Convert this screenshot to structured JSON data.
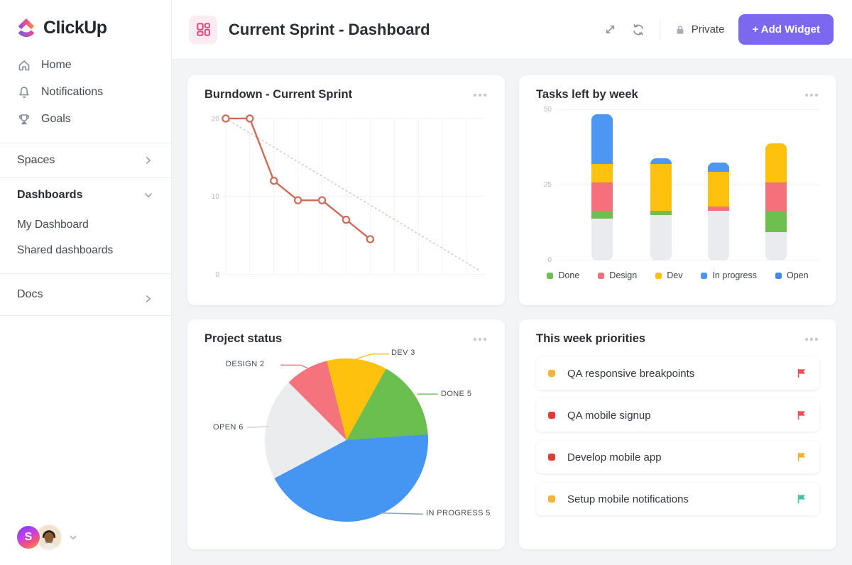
{
  "colors": {
    "accent_purple": "#7b68ee",
    "header_icon_pink": "#e9447e",
    "line_red": "#cf6a58",
    "flag_red": "#ee4b52",
    "flag_yellow": "#f2b02c",
    "flag_teal": "#3cc8a2"
  },
  "sidebar": {
    "logo_text": "ClickUp",
    "nav": [
      {
        "icon": "home-icon",
        "label": "Home"
      },
      {
        "icon": "bell-icon",
        "label": "Notifications"
      },
      {
        "icon": "trophy-icon",
        "label": "Goals"
      }
    ],
    "spaces_label": "Spaces",
    "dashboards_label": "Dashboards",
    "dashboards_children": [
      {
        "label": "My Dashboard"
      },
      {
        "label": "Shared dashboards"
      }
    ],
    "docs_label": "Docs",
    "avatar_initial": "S"
  },
  "header": {
    "title": "Current Sprint - Dashboard",
    "private_label": "Private",
    "add_widget_label": "+ Add Widget"
  },
  "widgets": {
    "burndown": {
      "title": "Burndown - Current Sprint"
    },
    "tasks_left": {
      "title": "Tasks left by week"
    },
    "project_status": {
      "title": "Project status"
    },
    "priorities": {
      "title": "This week priorities",
      "items": [
        {
          "title": "QA responsive breakpoints",
          "status_color": "#f7b436",
          "flag_color": "#ee4b52"
        },
        {
          "title": "QA mobile signup",
          "status_color": "#e23b35",
          "flag_color": "#ee4b52"
        },
        {
          "title": "Develop mobile app",
          "status_color": "#e23b35",
          "flag_color": "#f2b02c"
        },
        {
          "title": "Setup mobile notifications",
          "status_color": "#f7b436",
          "flag_color": "#3cc8a2"
        }
      ]
    }
  },
  "chart_data": [
    {
      "id": "burndown",
      "type": "line",
      "title": "Burndown - Current Sprint",
      "ylim": [
        0,
        20
      ],
      "yticks": [
        0,
        10,
        20
      ],
      "x_gridline_count": 11,
      "grid": true,
      "legend_position": "none",
      "series": [
        {
          "name": "actual",
          "color": "#cf6a58",
          "values": [
            20,
            20,
            12,
            9.5,
            9.5,
            7,
            4.5
          ]
        },
        {
          "name": "ideal",
          "color": "#ddc7c3",
          "style": "dotted",
          "start": 20,
          "end": 0.5
        }
      ]
    },
    {
      "id": "tasks-left",
      "type": "bar",
      "title": "Tasks left by week",
      "stacked": true,
      "ylim": [
        0,
        50
      ],
      "yticks": [
        0,
        25,
        50
      ],
      "legend_position": "bottom",
      "legend": [
        {
          "label": "Done",
          "color": "#6dc04f"
        },
        {
          "label": "Design",
          "color": "#f4717b"
        },
        {
          "label": "Dev",
          "color": "#fec10d"
        },
        {
          "label": "In progress",
          "color": "#4c97f1"
        },
        {
          "label": "Open",
          "color": "#4589e8"
        }
      ],
      "bars": [
        {
          "segments": [
            {
              "name": "base",
              "value": 14,
              "color": "#e9ebee"
            },
            {
              "name": "done",
              "value": 2.5,
              "color": "#6dc04f"
            },
            {
              "name": "design",
              "value": 9.5,
              "color": "#f4717b"
            },
            {
              "name": "dev",
              "value": 6,
              "color": "#fec10d"
            },
            {
              "name": "open",
              "value": 16.5,
              "color": "#4c97f1"
            }
          ]
        },
        {
          "segments": [
            {
              "name": "base",
              "value": 15,
              "color": "#e9ebee"
            },
            {
              "name": "done",
              "value": 1.5,
              "color": "#6dc04f"
            },
            {
              "name": "dev",
              "value": 15.5,
              "color": "#fec10d"
            },
            {
              "name": "open",
              "value": 2,
              "color": "#4c97f1"
            }
          ]
        },
        {
          "segments": [
            {
              "name": "base",
              "value": 16.5,
              "color": "#e9ebee"
            },
            {
              "name": "design",
              "value": 1.5,
              "color": "#f4717b"
            },
            {
              "name": "dev",
              "value": 11.5,
              "color": "#fec10d"
            },
            {
              "name": "open",
              "value": 3,
              "color": "#4c97f1"
            }
          ]
        },
        {
          "segments": [
            {
              "name": "base",
              "value": 9.5,
              "color": "#e9ebee"
            },
            {
              "name": "done",
              "value": 7,
              "color": "#6dc04f"
            },
            {
              "name": "design",
              "value": 9.5,
              "color": "#f4717b"
            },
            {
              "name": "dev",
              "value": 13,
              "color": "#fec10d"
            }
          ]
        }
      ]
    },
    {
      "id": "project-status",
      "type": "pie",
      "title": "Project status",
      "rotation_deg": -14,
      "slices": [
        {
          "label": "DEV",
          "value": 3,
          "display": "DEV 3",
          "color": "#fec10d",
          "angles": [
            0,
            43
          ]
        },
        {
          "label": "DONE",
          "value": 5,
          "display": "DONE 5",
          "color": "#6abf4f",
          "angles": [
            43,
            100
          ]
        },
        {
          "label": "IN PROGRESS",
          "value": 5,
          "display": "IN PROGRESS 5",
          "color": "#4596f3",
          "angles": [
            100,
            256
          ]
        },
        {
          "label": "OPEN",
          "value": 6,
          "display": "OPEN 6",
          "color": "#ebecee",
          "angles": [
            256,
            329
          ]
        },
        {
          "label": "DESIGN",
          "value": 2,
          "display": "DESIGN 2",
          "color": "#f4737c",
          "angles": [
            329,
            360
          ]
        }
      ]
    }
  ]
}
